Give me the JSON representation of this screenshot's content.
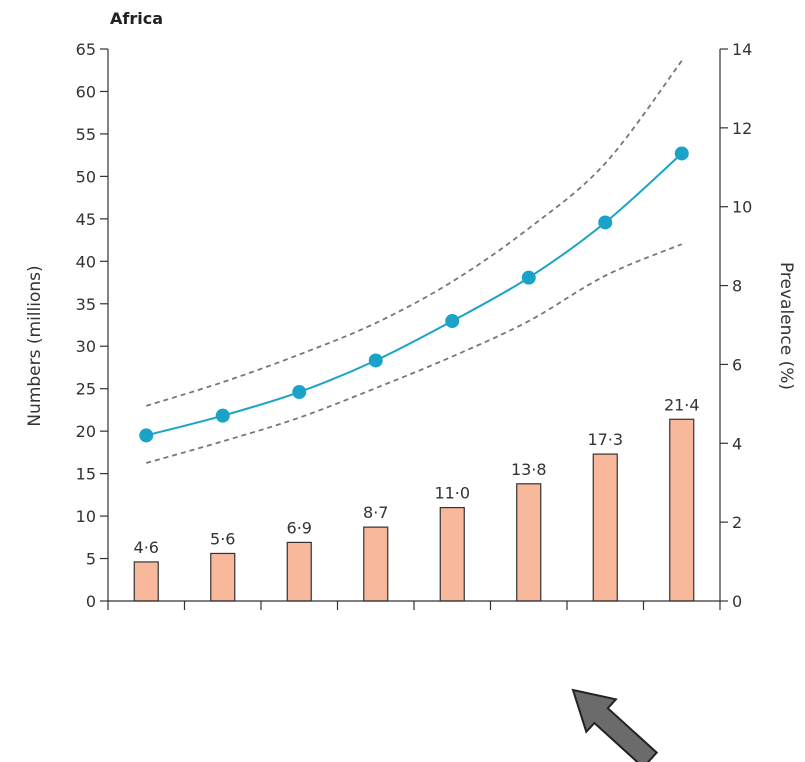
{
  "chart_data": {
    "type": "bar",
    "title": "Africa",
    "x_tick_count": 8,
    "categories": [
      "",
      "",
      "",
      "",
      "",
      "",
      "",
      ""
    ],
    "bars": {
      "values": [
        4.6,
        5.6,
        6.9,
        8.7,
        11.0,
        13.8,
        17.3,
        21.4
      ],
      "labels": [
        "4·6",
        "5·6",
        "6·9",
        "8·7",
        "11·0",
        "13·8",
        "17·3",
        "21·4"
      ],
      "color": "#f8b89c",
      "edge_color": "#333333"
    },
    "prevalence_line": {
      "values": [
        4.2,
        4.7,
        5.3,
        6.1,
        7.1,
        8.2,
        9.6,
        11.35
      ],
      "color": "#1aa3c6",
      "marker": "circle"
    },
    "upper_bound": {
      "values": [
        4.95,
        5.55,
        6.25,
        7.05,
        8.1,
        9.45,
        11.1,
        13.7
      ],
      "style": "dashed",
      "color": "#777777"
    },
    "lower_bound": {
      "values": [
        3.5,
        4.05,
        4.65,
        5.4,
        6.2,
        7.1,
        8.25,
        9.05
      ],
      "style": "dashed",
      "color": "#777777"
    },
    "ylabel": "Numbers (millions)",
    "ylim": [
      0,
      65
    ],
    "yticks": [
      0,
      5,
      10,
      15,
      20,
      25,
      30,
      35,
      40,
      45,
      50,
      55,
      60,
      65
    ],
    "y2label": "Prevalence (%)",
    "y2lim": [
      0,
      14
    ],
    "y2ticks": [
      0,
      2,
      4,
      6,
      8,
      10,
      12,
      14
    ],
    "grid": false
  },
  "annotation": {
    "arrow_color": "#6b6b6b",
    "arrow_edge": "#222222",
    "arrow_direction": "up-left"
  }
}
